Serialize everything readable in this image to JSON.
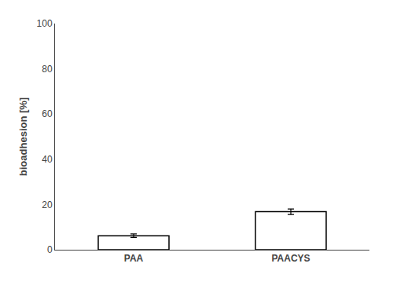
{
  "chart_data": {
    "type": "bar",
    "categories": [
      "PAA",
      "PAACYS"
    ],
    "values": [
      6.2,
      16.8
    ],
    "errors": [
      0.8,
      1.2
    ],
    "color": "#ffffff",
    "ylabel": "bioadhesion [%]",
    "ylim": [
      0,
      100
    ],
    "yticks": [
      0,
      20,
      40,
      60,
      80,
      100
    ],
    "grid": false
  }
}
